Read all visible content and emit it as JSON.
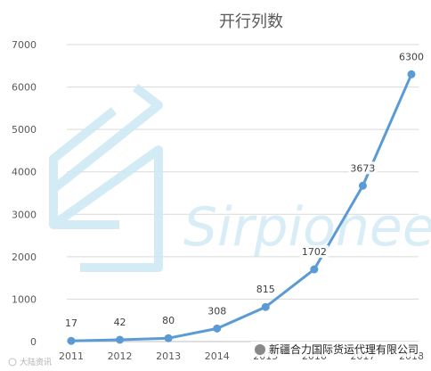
{
  "chart_data": {
    "type": "line",
    "title": "开行列数",
    "x": [
      "2011",
      "2012",
      "2013",
      "2014",
      "2015",
      "2016",
      "2017",
      "2018"
    ],
    "series": [
      {
        "values": [
          17,
          42,
          80,
          308,
          815,
          1702,
          3673,
          6300
        ]
      }
    ],
    "data_labels": [
      "17",
      "42",
      "80",
      "308",
      "815",
      "1702",
      "3673",
      "6300"
    ],
    "yticks": [
      0,
      1000,
      2000,
      3000,
      4000,
      5000,
      6000,
      7000
    ],
    "ylim": [
      0,
      7000
    ],
    "grid": "horizontal",
    "legend": "none",
    "colors": {
      "line": "#5b9bd5",
      "grid": "#d9d9d9"
    }
  },
  "watermark": {
    "brand": "Sirpionee"
  },
  "footer": {
    "source": "新疆合力国际货运代理有限公司"
  },
  "corner_tag": "大陆资讯"
}
